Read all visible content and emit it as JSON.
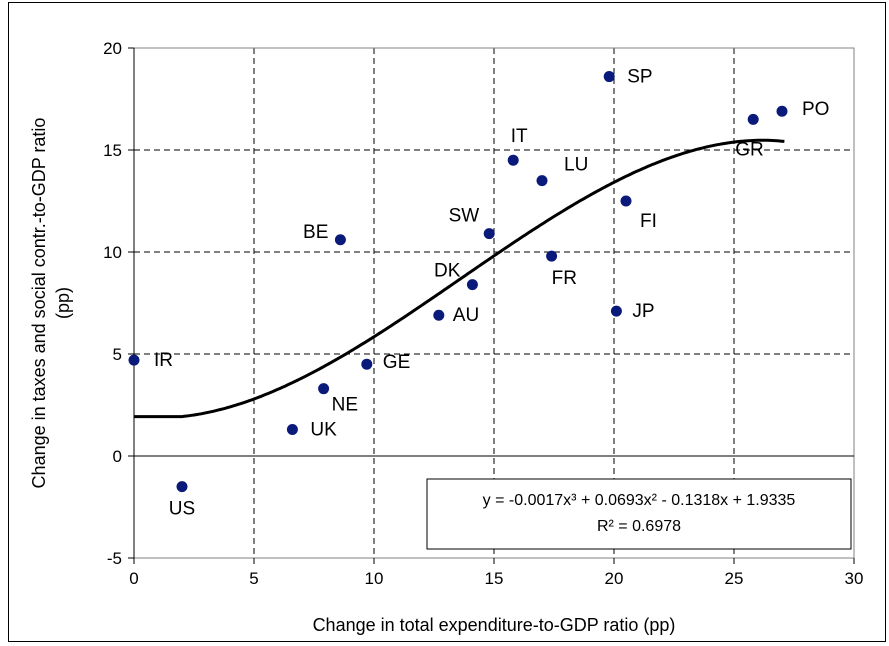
{
  "chart_data": {
    "type": "scatter",
    "xlabel": "Change in total expenditure-to-GDP ratio (pp)",
    "ylabel": "Change in taxes and social contr.-to-GDP ratio (pp)",
    "xlim": [
      0,
      30
    ],
    "ylim": [
      -5,
      20
    ],
    "x_ticks": [
      0,
      5,
      10,
      15,
      20,
      25,
      30
    ],
    "y_ticks": [
      -5,
      0,
      5,
      10,
      15,
      20
    ],
    "x_tick_labels": [
      "0",
      "5",
      "10",
      "15",
      "20",
      "25",
      "30"
    ],
    "y_tick_labels": [
      "-5",
      "0",
      "5",
      "10",
      "15",
      "20"
    ],
    "grid": true,
    "marker_color": "#0a1a7a",
    "points": [
      {
        "label": "IR",
        "x": 0.0,
        "y": 4.7
      },
      {
        "label": "US",
        "x": 2.0,
        "y": -1.5
      },
      {
        "label": "UK",
        "x": 6.6,
        "y": 1.3
      },
      {
        "label": "NE",
        "x": 7.9,
        "y": 3.3
      },
      {
        "label": "BE",
        "x": 8.6,
        "y": 10.6
      },
      {
        "label": "GE",
        "x": 9.7,
        "y": 4.5
      },
      {
        "label": "AU",
        "x": 12.7,
        "y": 6.9
      },
      {
        "label": "DK",
        "x": 14.1,
        "y": 8.4
      },
      {
        "label": "SW",
        "x": 14.8,
        "y": 10.9
      },
      {
        "label": "IT",
        "x": 15.8,
        "y": 14.5
      },
      {
        "label": "LU",
        "x": 17.0,
        "y": 13.5
      },
      {
        "label": "FR",
        "x": 17.4,
        "y": 9.8
      },
      {
        "label": "SP",
        "x": 19.8,
        "y": 18.6
      },
      {
        "label": "JP",
        "x": 20.1,
        "y": 7.1
      },
      {
        "label": "FI",
        "x": 20.5,
        "y": 12.5
      },
      {
        "label": "GR",
        "x": 25.8,
        "y": 16.5
      },
      {
        "label": "PO",
        "x": 27.0,
        "y": 16.9
      }
    ],
    "trendline": {
      "type": "polynomial",
      "coefficients": [
        -0.0017,
        0.0693,
        -0.1318,
        1.9335
      ],
      "x_range": [
        0,
        27.1
      ],
      "flat_from_origin_to": 2.0
    },
    "annotation": {
      "equation": "y = -0.0017x³ + 0.0693x² - 0.1318x + 1.9335",
      "r_squared": "R² = 0.6978"
    }
  }
}
